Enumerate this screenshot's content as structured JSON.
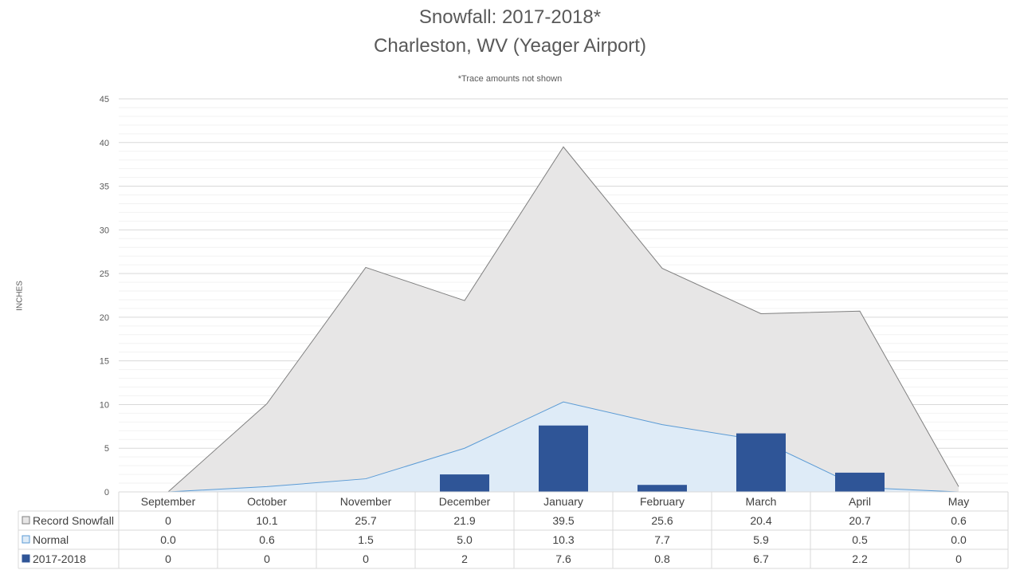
{
  "chart_data": {
    "type": "area",
    "title": "Snowfall: 2017-2018*",
    "subtitle": "Charleston, WV (Yeager Airport)",
    "note": "*Trace amounts not shown",
    "ylabel": "INCHES",
    "xlabel": "",
    "ylim": [
      0,
      45
    ],
    "yticks": [
      0,
      5,
      10,
      15,
      20,
      25,
      30,
      35,
      40,
      45
    ],
    "grid": true,
    "legend": "data-table",
    "categories": [
      "September",
      "October",
      "November",
      "December",
      "January",
      "February",
      "March",
      "April",
      "May"
    ],
    "series": [
      {
        "name": "Record Snowfall",
        "kind": "area",
        "color": "#E7E6E6",
        "stroke": "#7F7F7F",
        "values": [
          0,
          10.1,
          25.7,
          21.9,
          39.5,
          25.6,
          20.4,
          20.7,
          0.6
        ],
        "labels": [
          "0",
          "10.1",
          "25.7",
          "21.9",
          "39.5",
          "25.6",
          "20.4",
          "20.7",
          "0.6"
        ]
      },
      {
        "name": "Normal",
        "kind": "area",
        "color": "#DEEBF7",
        "stroke": "#5B9BD5",
        "values": [
          0.0,
          0.6,
          1.5,
          5.0,
          10.3,
          7.7,
          5.9,
          0.5,
          0.0
        ],
        "labels": [
          "0.0",
          "0.6",
          "1.5",
          "5.0",
          "10.3",
          "7.7",
          "5.9",
          "0.5",
          "0.0"
        ]
      },
      {
        "name": "2017-2018",
        "kind": "bar",
        "color": "#2F5597",
        "stroke": "#2F5597",
        "values": [
          0,
          0,
          0,
          2,
          7.6,
          0.8,
          6.7,
          2.2,
          0
        ],
        "labels": [
          "0",
          "0",
          "0",
          "2",
          "7.6",
          "0.8",
          "6.7",
          "2.2",
          "0"
        ]
      }
    ]
  }
}
